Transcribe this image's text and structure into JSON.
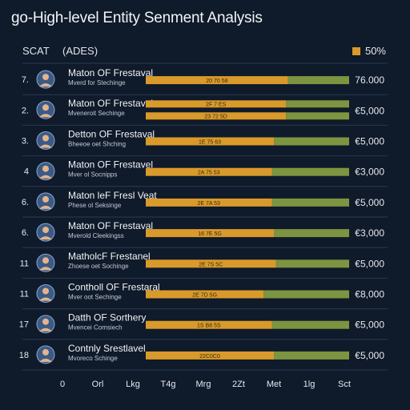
{
  "title": "go-High-level Entity Senment Analysis",
  "header": {
    "col1": "SCAT",
    "col2": "(ADES)",
    "legend_label": "50%"
  },
  "colors": {
    "background": "#0f1a2a",
    "orange": "#d99a2b",
    "green": "#7d9440",
    "grid": "#2c3a52"
  },
  "chart_data": {
    "type": "bar",
    "orientation": "horizontal",
    "stacked": true,
    "series_colors": [
      "#d99a2b",
      "#7d9440"
    ],
    "rows": [
      {
        "rank": "7.",
        "name": "Maton OF Frestaval",
        "sub": "Mverd for Stechinge",
        "value_label": "76.000",
        "bars": [
          {
            "segments": [
              0.7,
              0.3
            ],
            "label": "20 70 58"
          }
        ]
      },
      {
        "rank": "2.",
        "name": "Maton OF Frestaval",
        "sub": "Mveneroit Sechinge",
        "value_label": "€5,000",
        "bars": [
          {
            "segments": [
              0.69,
              0.31
            ],
            "label": "2F 7 ES"
          },
          {
            "segments": [
              0.69,
              0.31
            ],
            "label": "23 72 5D"
          }
        ]
      },
      {
        "rank": "3.",
        "name": "Detton OF Frestaval",
        "sub": "Bheeoe oet Shching",
        "value_label": "€5,000",
        "bars": [
          {
            "segments": [
              0.63,
              0.37
            ],
            "label": "1E 75 63"
          }
        ]
      },
      {
        "rank": "4",
        "name": "Maton OF Frestavel",
        "sub": "Mver ol Socnipps",
        "value_label": "€3,000",
        "bars": [
          {
            "segments": [
              0.62,
              0.38
            ],
            "label": "2A 75 53"
          }
        ]
      },
      {
        "rank": "6.",
        "name": "Maton leF Fresl Veat",
        "sub": "Phese ol Seksinge",
        "value_label": "€5,000",
        "bars": [
          {
            "segments": [
              0.62,
              0.38
            ],
            "label": "2E 7A 53"
          }
        ]
      },
      {
        "rank": "6.",
        "name": "Maton OF Frestaval",
        "sub": "Mverold Cleekingss",
        "value_label": "€3,000",
        "bars": [
          {
            "segments": [
              0.63,
              0.37
            ],
            "label": "16 7E 5G"
          }
        ]
      },
      {
        "rank": "11",
        "name": "MatholcF Frestanel",
        "sub": "Zhoese oet Sochinge",
        "value_label": "€5,000",
        "bars": [
          {
            "segments": [
              0.64,
              0.36
            ],
            "label": "2E 7S 5C"
          }
        ]
      },
      {
        "rank": "11",
        "name": "Contholl OF Frestaral",
        "sub": "Mver oot Sechinge",
        "value_label": "€8,000",
        "bars": [
          {
            "segments": [
              0.58,
              0.42
            ],
            "label": "2E 7D 5G"
          }
        ]
      },
      {
        "rank": "17",
        "name": "Datth OF Sorthery",
        "sub": "Mvencei Comsiech",
        "value_label": "€5,000",
        "bars": [
          {
            "segments": [
              0.62,
              0.38
            ],
            "label": "1S B8 5S"
          }
        ]
      },
      {
        "rank": "18",
        "name": "Contnly Srestlavel",
        "sub": "Mvoreco Schinge",
        "value_label": "€5,000",
        "bars": [
          {
            "segments": [
              0.63,
              0.37
            ],
            "label": "22C0C0"
          }
        ]
      }
    ],
    "x_ticks": [
      "0",
      "Orl",
      "Lkg",
      "T4g",
      "Mrg",
      "2Zt",
      "Met",
      "1lg",
      "Sct"
    ]
  }
}
